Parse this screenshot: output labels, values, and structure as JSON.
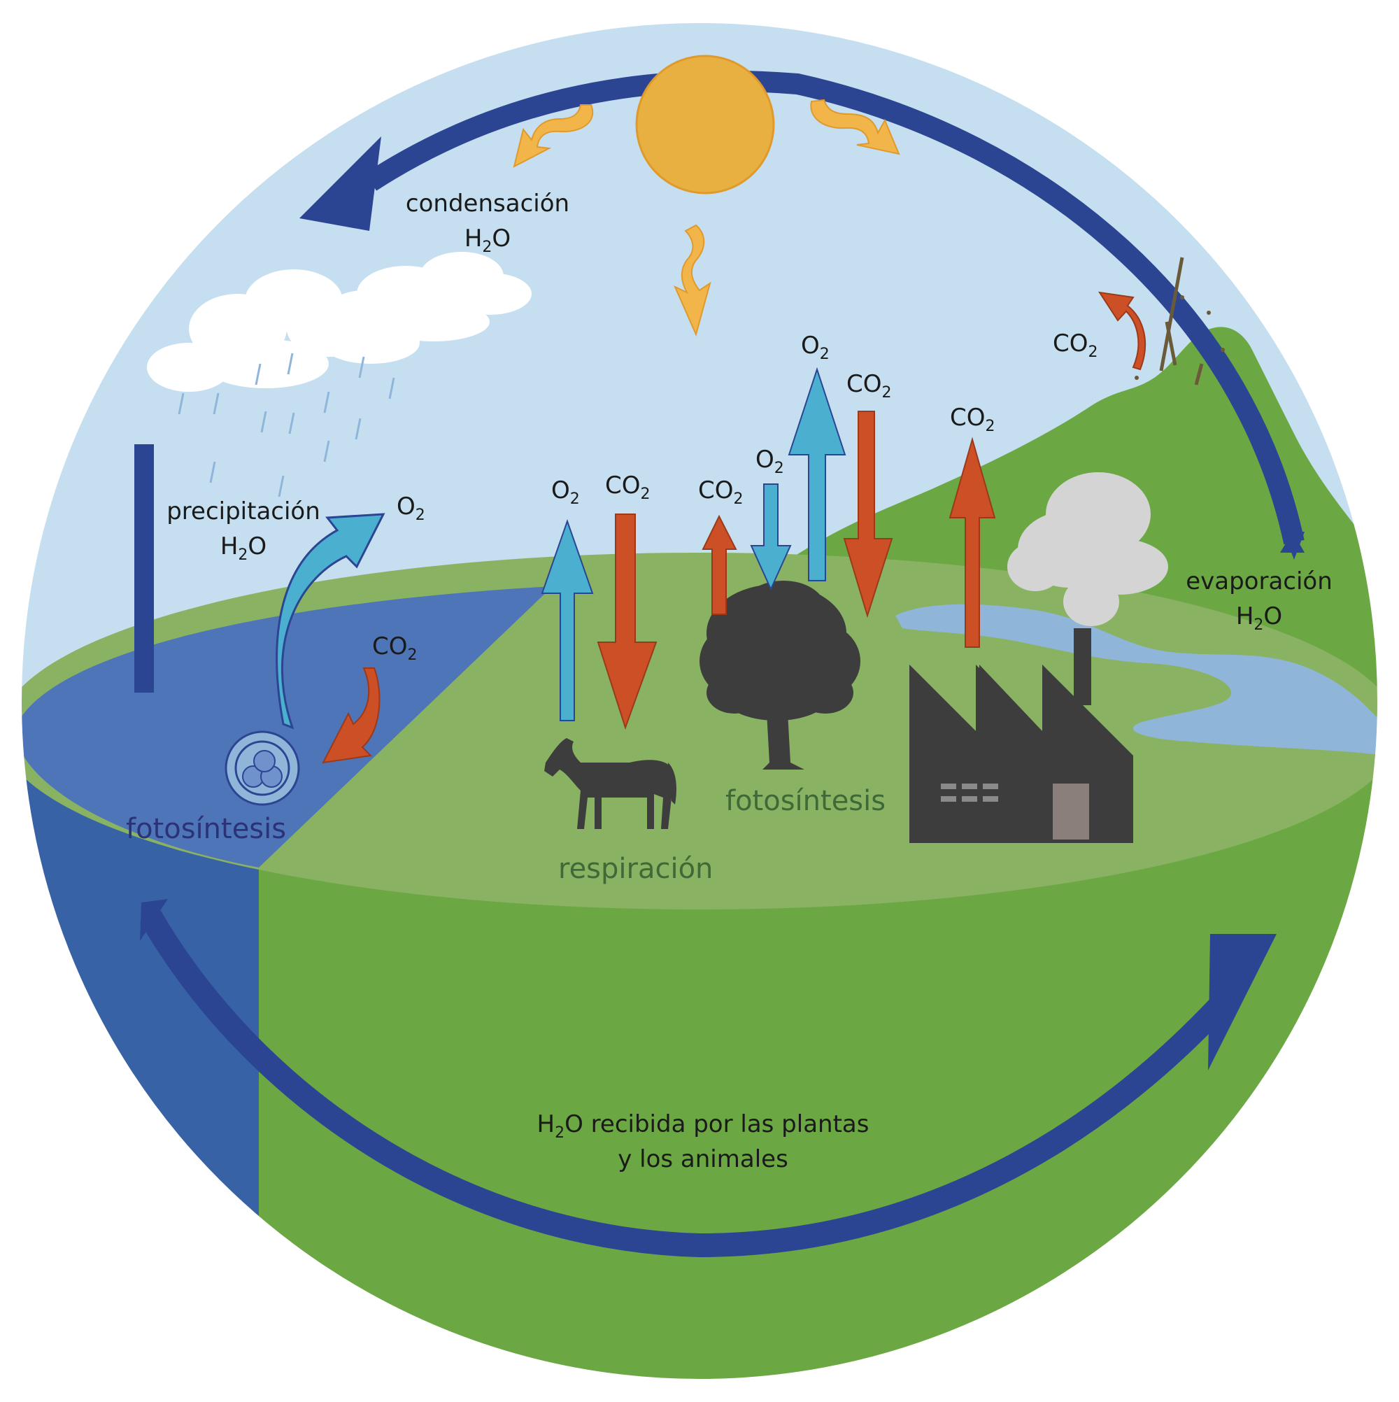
{
  "labels": {
    "condensacion": "condensación",
    "precipitacion": "precipitación",
    "evaporacion": "evaporación",
    "h2o": "H",
    "o_suffix": "O",
    "h2o_sub": "2",
    "o2_main": "O",
    "o2_sub": "2",
    "co2_main": "CO",
    "co2_sub": "2",
    "fotosintesis_ocean": "fotosíntesis",
    "fotosintesis_land": "fotosíntesis",
    "respiracion": "respiración",
    "bottom_line1_pre": "H",
    "bottom_line1_sub": "2",
    "bottom_line1_post": "O recibida por las plantas",
    "bottom_line2": "y los animales"
  },
  "colors": {
    "sky": "#c5dff0",
    "ocean_top": "#4f75b9",
    "ocean_side": "#3862a6",
    "land_top": "#8ab263",
    "land_side": "#6ba843",
    "hill": "#6ba843",
    "river": "#8fb5d9",
    "cycle_arrow": "#2b4592",
    "sun": "#e8b040",
    "sun_stroke": "#e09a2c",
    "co2_arrow": "#cc4f26",
    "o2_arrow": "#4bb0d0",
    "silhouette": "#3d3d3d",
    "smoke": "#d4d4d4",
    "cloud": "#ffffff"
  },
  "icons": [
    "sun-icon",
    "cloud-icon",
    "rain-icon",
    "tree-icon",
    "horse-icon",
    "factory-icon",
    "smoke-icon",
    "plankton-icon",
    "volcano-icon"
  ]
}
